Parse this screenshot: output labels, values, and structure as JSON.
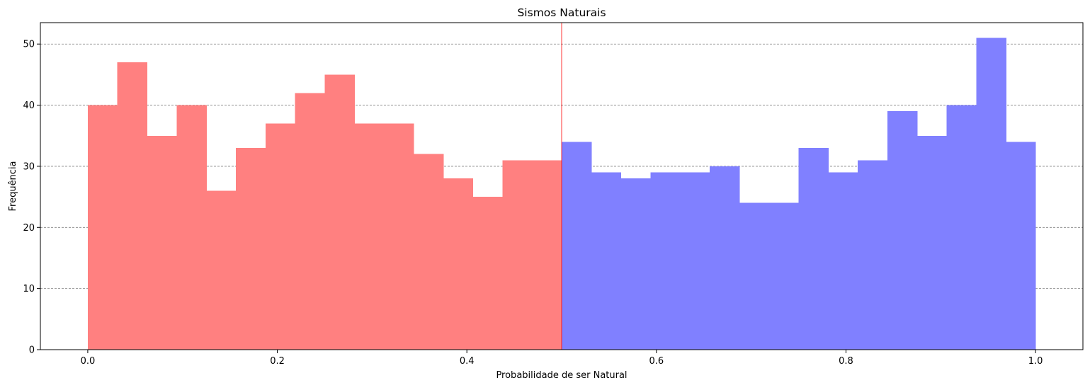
{
  "chart_data": {
    "type": "bar",
    "title": "Sismos Naturais",
    "xlabel": "Probabilidade de ser Natural",
    "ylabel": "Frequência",
    "xlim": [
      -0.05,
      1.05
    ],
    "ylim": [
      0,
      53.5
    ],
    "x_ticks": [
      "0.0",
      "0.2",
      "0.4",
      "0.6",
      "0.8",
      "1.0"
    ],
    "x_tick_values": [
      0,
      0.2,
      0.4,
      0.6,
      0.8,
      1.0
    ],
    "y_ticks": [
      "0",
      "10",
      "20",
      "30",
      "40",
      "50"
    ],
    "y_tick_values": [
      0,
      10,
      20,
      30,
      40,
      50
    ],
    "grid": "horizontal, dashed, gray",
    "threshold_line": {
      "x": 0.5,
      "color": "#ff0000"
    },
    "series": [
      {
        "color": "#ff8080",
        "bin_edges": [
          0.0,
          0.03125,
          0.0625,
          0.09375,
          0.125,
          0.15625,
          0.1875,
          0.21875,
          0.25,
          0.28125,
          0.3125,
          0.34375,
          0.375,
          0.40625,
          0.4375,
          0.46875,
          0.5
        ],
        "values": [
          40,
          47,
          35,
          40,
          26,
          33,
          37,
          42,
          45,
          37,
          37,
          32,
          28,
          25,
          31,
          31
        ]
      },
      {
        "color": "#8080ff",
        "bin_edges": [
          0.5,
          0.53125,
          0.5625,
          0.59375,
          0.625,
          0.65625,
          0.6875,
          0.71875,
          0.75,
          0.78125,
          0.8125,
          0.84375,
          0.875,
          0.90625,
          0.9375,
          0.96875,
          1.0
        ],
        "values": [
          34,
          29,
          28,
          29,
          29,
          30,
          24,
          24,
          33,
          29,
          31,
          39,
          35,
          40,
          51,
          34
        ]
      }
    ]
  }
}
